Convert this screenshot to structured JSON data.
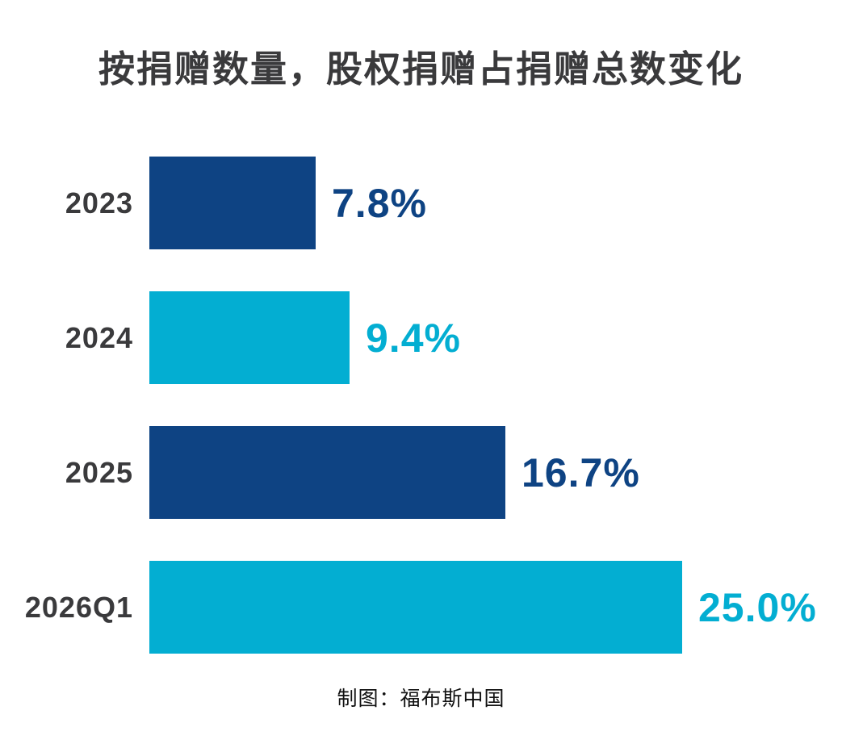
{
  "page": {
    "background": "#ffffff"
  },
  "chart_data": {
    "type": "bar",
    "orientation": "horizontal",
    "title": "按捐赠数量，股权捐赠占捐赠总数变化",
    "source": "制图：福布斯中国",
    "categories": [
      "2023",
      "2024",
      "2025",
      "2026Q1"
    ],
    "values": [
      7.8,
      9.4,
      16.7,
      25.0
    ],
    "value_labels": [
      "7.8%",
      "9.4%",
      "16.7%",
      "25.0%"
    ],
    "bar_colors": [
      "#0E4383",
      "#03AED2",
      "#0E4383",
      "#03AED2"
    ],
    "xlim": [
      0,
      25
    ],
    "grid": false,
    "legend": false,
    "axes_visible": false,
    "colors": {
      "navy": "#0E4383",
      "cyan": "#03AED2",
      "title_text": "#3A3A3C",
      "category_text": "#3A3A3C",
      "source_text": "#111111"
    }
  }
}
